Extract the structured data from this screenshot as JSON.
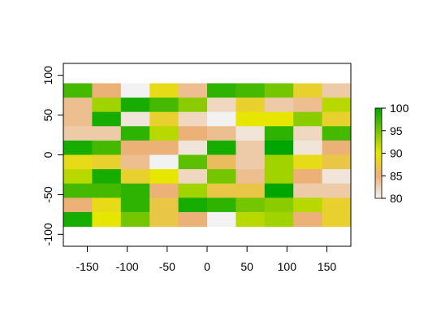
{
  "chart_data": {
    "type": "raster",
    "x": [
      -162,
      -126,
      -90,
      -54,
      -18,
      18,
      54,
      90,
      126,
      162
    ],
    "y": [
      81,
      63,
      45,
      27,
      9,
      -9,
      -27,
      -45,
      -63,
      -81
    ],
    "values": [
      [
        97,
        85,
        80,
        89,
        84,
        98,
        97,
        95,
        88,
        83
      ],
      [
        84,
        93,
        99,
        97,
        94,
        82,
        88,
        83,
        84,
        92
      ],
      [
        84,
        99,
        81,
        88,
        82,
        80,
        90,
        90,
        94,
        88
      ],
      [
        83,
        83,
        98,
        92,
        85,
        84,
        81,
        98,
        82,
        97
      ],
      [
        99,
        97,
        85,
        85,
        81,
        99,
        83,
        100,
        81,
        85
      ],
      [
        89,
        88,
        84,
        80,
        96,
        86,
        83,
        93,
        89,
        87
      ],
      [
        92,
        99,
        88,
        90,
        82,
        95,
        84,
        93,
        85,
        81
      ],
      [
        97,
        97,
        98,
        85,
        93,
        87,
        87,
        100,
        83,
        83
      ],
      [
        85,
        89,
        98,
        87,
        99,
        98,
        95,
        94,
        92,
        88
      ],
      [
        99,
        90,
        95,
        87,
        85,
        80,
        92,
        93,
        85,
        88
      ]
    ],
    "xlim": [
      -180,
      180
    ],
    "ylim": [
      -115,
      115
    ],
    "xticks": [
      -150,
      -100,
      -50,
      0,
      50,
      100,
      150
    ],
    "yticks": [
      -100,
      -50,
      0,
      50,
      100
    ],
    "colorscale": [
      [
        80,
        "#F2F2F2"
      ],
      [
        85,
        "#ECB176"
      ],
      [
        90,
        "#E6E600"
      ],
      [
        100,
        "#00A600"
      ]
    ],
    "legend_lim": [
      80,
      100
    ],
    "legend_ticks": [
      80,
      85,
      90,
      95,
      100
    ]
  }
}
